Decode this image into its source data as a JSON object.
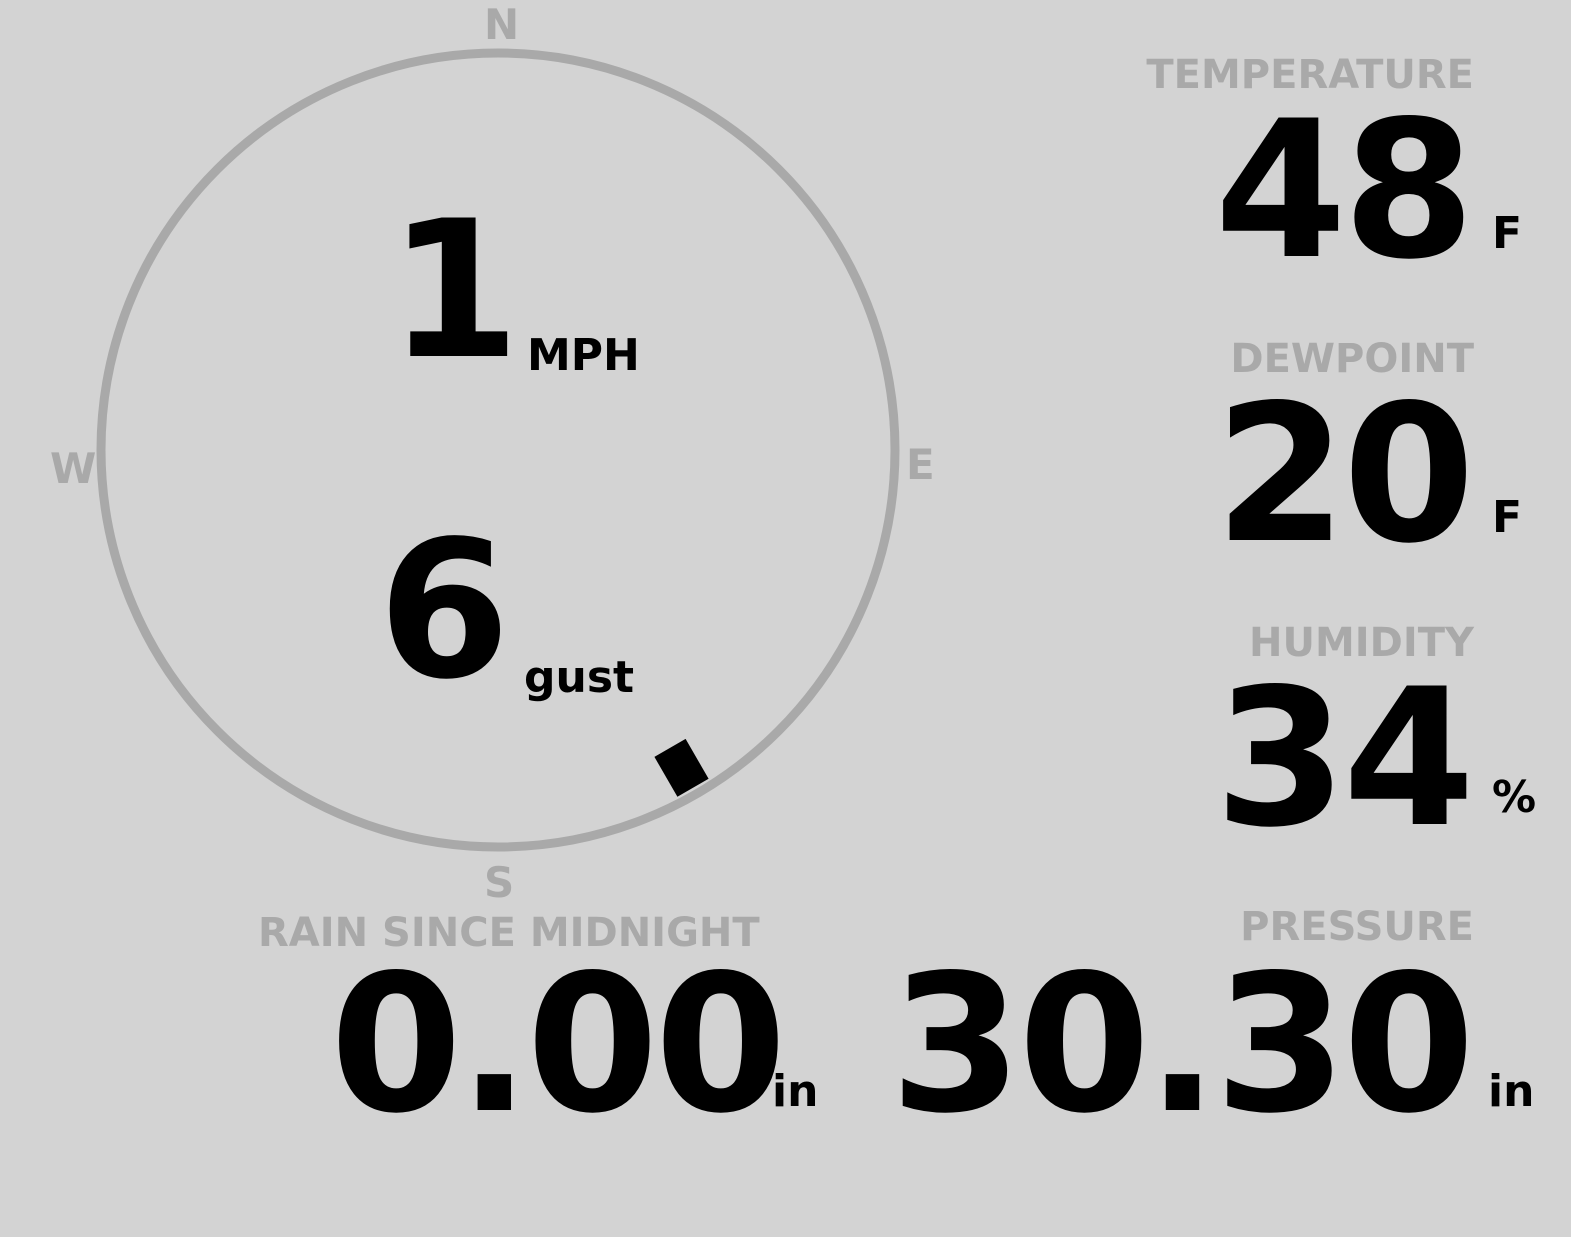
{
  "wind": {
    "speed": "1",
    "speed_unit": "MPH",
    "gust": "6",
    "gust_label": "gust",
    "direction_deg": 150,
    "compass": {
      "n": "N",
      "e": "E",
      "s": "S",
      "w": "W"
    }
  },
  "temperature": {
    "label": "TEMPERATURE",
    "value": "48",
    "unit": "F"
  },
  "dewpoint": {
    "label": "DEWPOINT",
    "value": "20",
    "unit": "F"
  },
  "humidity": {
    "label": "HUMIDITY",
    "value": "34",
    "unit": "%"
  },
  "rain": {
    "label": "RAIN SINCE MIDNIGHT",
    "value": "0.00",
    "unit": "in"
  },
  "pressure": {
    "label": "PRESSURE",
    "value": "30.30",
    "unit": "in"
  },
  "colors": {
    "background": "#d3d3d3",
    "muted": "#a9a9a9",
    "value": "#000000"
  }
}
